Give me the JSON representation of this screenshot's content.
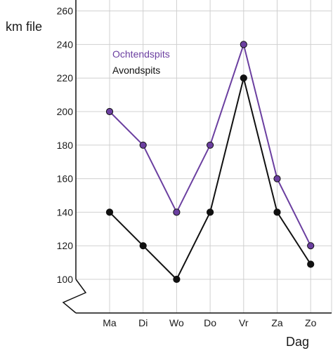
{
  "chart_data": {
    "type": "line",
    "categories": [
      "Ma",
      "Di",
      "Wo",
      "Do",
      "Vr",
      "Za",
      "Zo"
    ],
    "series": [
      {
        "name": "Ochtendspits",
        "color": "#6b3fa0",
        "values": [
          200,
          180,
          140,
          180,
          240,
          160,
          120
        ]
      },
      {
        "name": "Avondspits",
        "color": "#111111",
        "values": [
          140,
          120,
          100,
          140,
          220,
          140,
          109
        ]
      }
    ],
    "ylabel": "km file",
    "xlabel": "Dag",
    "yticks": [
      100,
      120,
      140,
      160,
      180,
      200,
      220,
      240,
      260
    ],
    "ylim": [
      80,
      264
    ],
    "axis_break": true,
    "grid": true,
    "legend_position": "top-left"
  }
}
